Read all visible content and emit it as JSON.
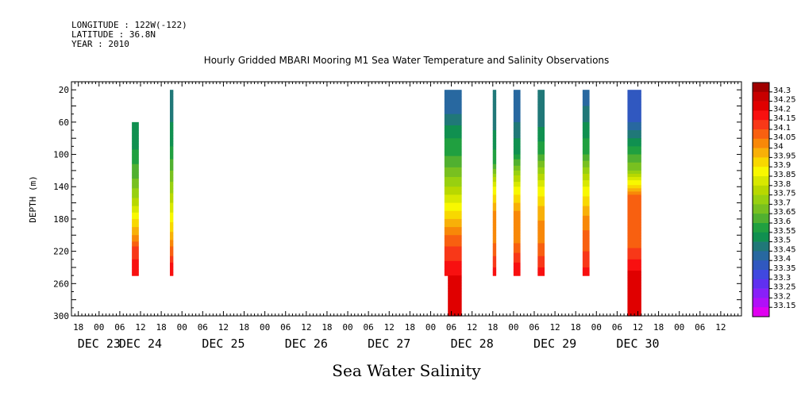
{
  "header": {
    "longitude": "LONGITUDE : 122W(-122)",
    "latitude": "LATITUDE : 36.8N",
    "year": "YEAR : 2010"
  },
  "chart_data": {
    "type": "heatmap",
    "title": "Hourly Gridded MBARI Mooring M1 Sea Water Temperature and Salinity Observations",
    "xlabel": "Sea Water Salinity",
    "ylabel": "DEPTH (m)",
    "y_reversed": true,
    "ylim": [
      300,
      10
    ],
    "y_ticks": [
      20,
      60,
      100,
      140,
      180,
      220,
      260,
      300
    ],
    "x_range_hours": [
      -8,
      186
    ],
    "x_tick_hours": [
      -6,
      0,
      6,
      12,
      18,
      24,
      30,
      36,
      42,
      48,
      54,
      60,
      66,
      72,
      78,
      84,
      90,
      96,
      102,
      108,
      114,
      120,
      126,
      132,
      138,
      144,
      150,
      156,
      162,
      168,
      174,
      180
    ],
    "x_tick_labels": [
      "18",
      "00",
      "06",
      "12",
      "18",
      "00",
      "06",
      "12",
      "18",
      "00",
      "06",
      "12",
      "18",
      "00",
      "06",
      "12",
      "18",
      "00",
      "06",
      "12",
      "18",
      "00",
      "06",
      "12",
      "18",
      "00",
      "06",
      "12",
      "18",
      "00",
      "06",
      "12"
    ],
    "day_labels": [
      {
        "hour": 0,
        "text": "DEC 23"
      },
      {
        "hour": 12,
        "text": "DEC 24"
      },
      {
        "hour": 36,
        "text": "DEC 25"
      },
      {
        "hour": 60,
        "text": "DEC 26"
      },
      {
        "hour": 84,
        "text": "DEC 27"
      },
      {
        "hour": 108,
        "text": "DEC 28"
      },
      {
        "hour": 132,
        "text": "DEC 29"
      },
      {
        "hour": 156,
        "text": "DEC 30"
      }
    ],
    "colorbar": {
      "levels": [
        "34.3",
        "34.25",
        "34.2",
        "34.15",
        "34.1",
        "34.05",
        "34",
        "33.95",
        "33.9",
        "33.85",
        "33.8",
        "33.75",
        "33.7",
        "33.65",
        "33.6",
        "33.55",
        "33.5",
        "33.45",
        "33.4",
        "33.35",
        "33.3",
        "33.25",
        "33.2",
        "33.15"
      ],
      "colors": [
        "#a00000",
        "#c80000",
        "#e00000",
        "#f81010",
        "#f83818",
        "#f86010",
        "#f88808",
        "#f8b008",
        "#f8d800",
        "#f8f800",
        "#d8e800",
        "#b8d800",
        "#98d010",
        "#78c020",
        "#50b030",
        "#20a040",
        "#109050",
        "#207878",
        "#2868a0",
        "#3058c0",
        "#4048e0",
        "#6030f0",
        "#8820f8",
        "#b010f8",
        "#e000f0"
      ]
    },
    "columns": [
      {
        "x0": 9.5,
        "x1": 11.5,
        "profile": [
          [
            60,
            33.55
          ],
          [
            70,
            33.52
          ],
          [
            95,
            33.55
          ],
          [
            130,
            33.65
          ],
          [
            160,
            33.78
          ],
          [
            180,
            33.9
          ],
          [
            200,
            34.0
          ],
          [
            215,
            34.1
          ],
          [
            235,
            34.17
          ],
          [
            250,
            34.2
          ]
        ]
      },
      {
        "x0": 20.5,
        "x1": 21.5,
        "profile": [
          [
            20,
            33.47
          ],
          [
            60,
            33.5
          ],
          [
            90,
            33.55
          ],
          [
            130,
            33.68
          ],
          [
            160,
            33.8
          ],
          [
            190,
            33.92
          ],
          [
            215,
            34.05
          ],
          [
            235,
            34.15
          ],
          [
            250,
            34.2
          ]
        ]
      },
      {
        "x0": 100,
        "x1": 105,
        "profile": [
          [
            20,
            33.42
          ],
          [
            50,
            33.45
          ],
          [
            80,
            33.55
          ],
          [
            110,
            33.62
          ],
          [
            140,
            33.75
          ],
          [
            170,
            33.9
          ],
          [
            200,
            34.05
          ],
          [
            220,
            34.12
          ],
          [
            240,
            34.17
          ],
          [
            250,
            34.2
          ]
        ]
      },
      {
        "x0": 101,
        "x1": 105,
        "profile": [
          [
            250,
            34.2
          ],
          [
            270,
            34.25
          ],
          [
            290,
            34.2
          ],
          [
            300,
            34.2
          ]
        ]
      },
      {
        "x0": 114,
        "x1": 115,
        "profile": [
          [
            20,
            33.45
          ],
          [
            70,
            33.5
          ],
          [
            110,
            33.58
          ],
          [
            140,
            33.85
          ],
          [
            170,
            34.0
          ],
          [
            210,
            34.05
          ],
          [
            240,
            34.15
          ],
          [
            250,
            34.2
          ]
        ]
      },
      {
        "x0": 120,
        "x1": 122,
        "profile": [
          [
            20,
            33.4
          ],
          [
            60,
            33.45
          ],
          [
            100,
            33.55
          ],
          [
            140,
            33.85
          ],
          [
            170,
            34.0
          ],
          [
            210,
            34.05
          ],
          [
            235,
            34.15
          ],
          [
            250,
            34.2
          ]
        ]
      },
      {
        "x0": 127,
        "x1": 129,
        "profile": [
          [
            20,
            33.45
          ],
          [
            60,
            33.48
          ],
          [
            100,
            33.6
          ],
          [
            140,
            33.85
          ],
          [
            170,
            33.98
          ],
          [
            210,
            34.05
          ],
          [
            240,
            34.15
          ],
          [
            250,
            34.2
          ]
        ]
      },
      {
        "x0": 140,
        "x1": 142,
        "profile": [
          [
            20,
            33.4
          ],
          [
            60,
            33.5
          ],
          [
            100,
            33.6
          ],
          [
            140,
            33.85
          ],
          [
            180,
            34.02
          ],
          [
            220,
            34.1
          ],
          [
            240,
            34.15
          ],
          [
            250,
            34.2
          ]
        ]
      },
      {
        "x0": 153,
        "x1": 157,
        "profile": [
          [
            20,
            33.35
          ],
          [
            60,
            33.4
          ],
          [
            90,
            33.55
          ],
          [
            120,
            33.7
          ],
          [
            150,
            34.05
          ],
          [
            200,
            34.05
          ],
          [
            230,
            34.15
          ],
          [
            260,
            34.25
          ],
          [
            280,
            34.2
          ],
          [
            300,
            34.2
          ]
        ]
      }
    ]
  }
}
